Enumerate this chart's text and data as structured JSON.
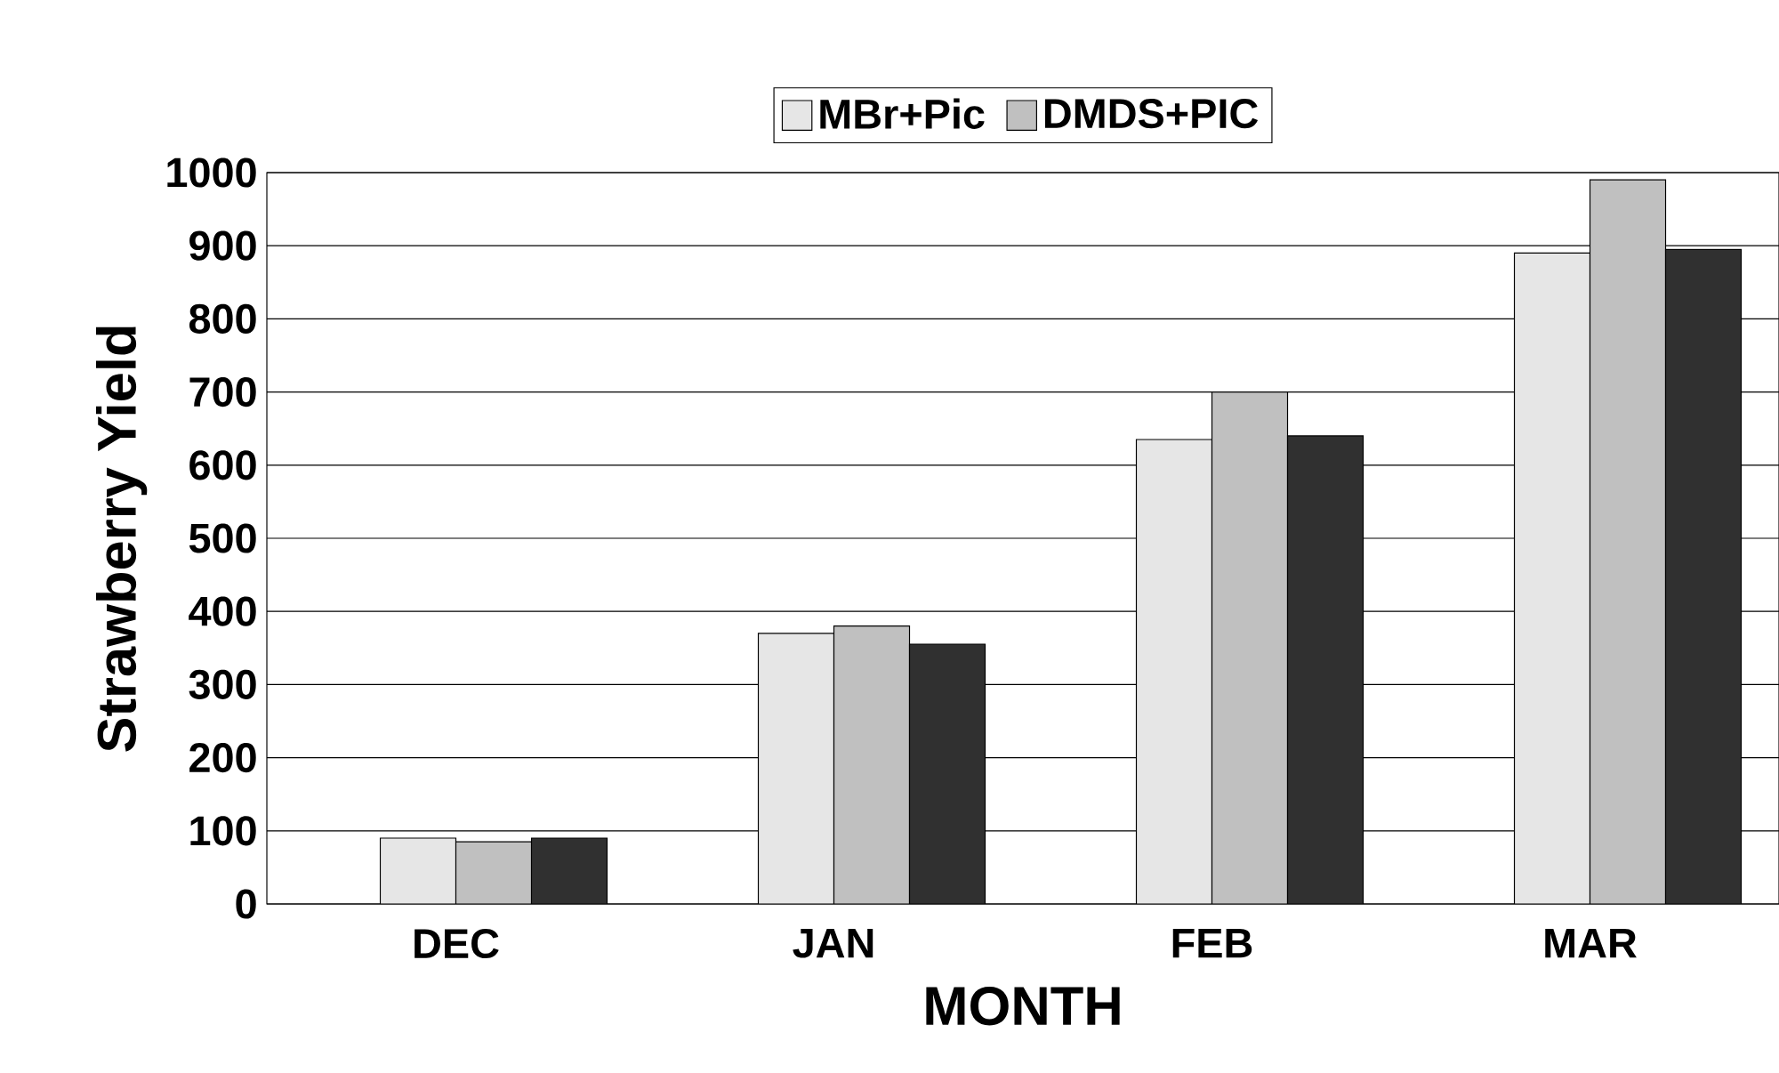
{
  "chart_data": {
    "type": "bar",
    "xlabel": "MONTH",
    "ylabel": "Strawberry Yield",
    "categories": [
      "DEC",
      "JAN",
      "FEB",
      "MAR"
    ],
    "series": [
      {
        "name": "MBr+Pic",
        "color": "#e6e6e6",
        "values": [
          90,
          370,
          635,
          890
        ]
      },
      {
        "name": "DMDS+PIC",
        "color": "#c0c0c0",
        "values": [
          85,
          380,
          700,
          990
        ]
      },
      {
        "color": "#303030",
        "values": [
          90,
          355,
          640,
          895
        ]
      }
    ],
    "ylim": [
      0,
      1000
    ],
    "yticks": [
      0,
      100,
      200,
      300,
      400,
      500,
      600,
      700,
      800,
      900,
      1000
    ],
    "grid": "y",
    "legend": "top"
  }
}
